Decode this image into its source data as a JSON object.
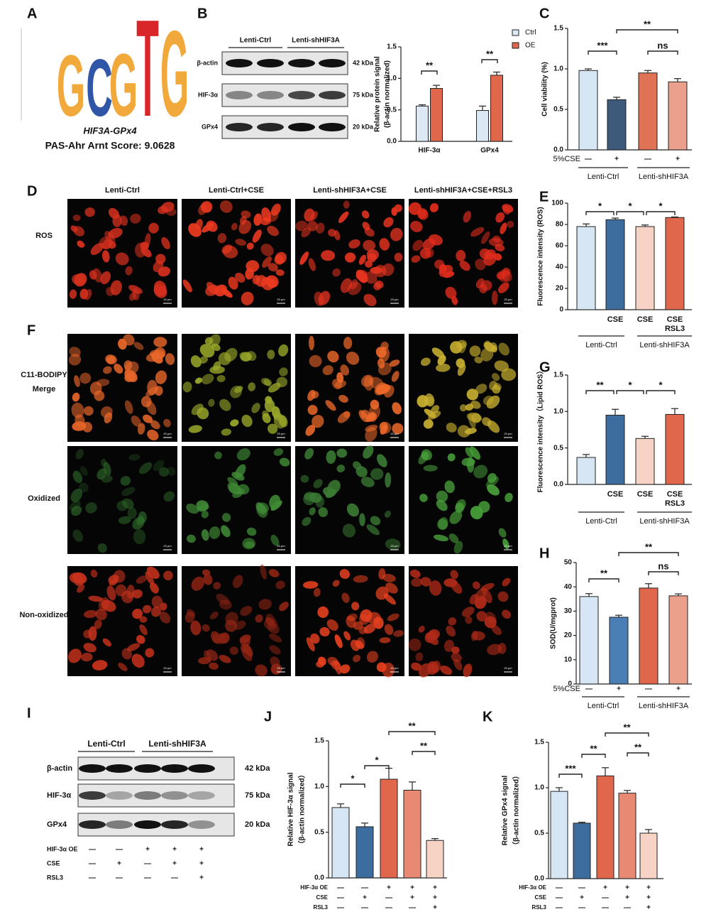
{
  "panel_labels": [
    "A",
    "B",
    "C",
    "D",
    "E",
    "F",
    "G",
    "H",
    "I",
    "J",
    "K"
  ],
  "motif": {
    "logo": [
      "G",
      "C",
      "G",
      "T",
      "G"
    ],
    "name": "HIF3A-GPx4",
    "score": "PAS-Ahr Arnt Score: 9.0628"
  },
  "blots": [
    {
      "groups": [
        "Lenti-Ctrl",
        "Lenti-shHIF3A"
      ],
      "rows": [
        {
          "protein": "β-actin",
          "size": "42 kDa"
        },
        {
          "protein": "HIF-3α",
          "size": "75 kDa"
        },
        {
          "protein": "GPx4",
          "size": "20 kDa"
        }
      ]
    },
    {
      "groups": [
        "Lenti-Ctrl",
        "Lenti-shHIF3A"
      ],
      "rows": [
        {
          "protein": "β-actin",
          "size": "42 kDa"
        },
        {
          "protein": "HIF-3α",
          "size": "75 kDa"
        },
        {
          "protein": "GPx4",
          "size": "20 kDa"
        }
      ],
      "conditions": [
        {
          "name": "HIF-3α OE",
          "values": [
            "—",
            "—",
            "+",
            "+",
            "+"
          ]
        },
        {
          "name": "CSE",
          "values": [
            "—",
            "+",
            "—",
            "+",
            "+"
          ]
        },
        {
          "name": "RSL3",
          "values": [
            "—",
            "—",
            "—",
            "—",
            "+"
          ]
        }
      ]
    }
  ],
  "microscopy": {
    "columns": [
      "Lenti-Ctrl",
      "Lenti-Ctrl+CSE",
      "Lenti-shHIF3A+CSE",
      "Lenti-shHIF3A+CSE+RSL3"
    ],
    "rows": [
      [
        "ROS"
      ],
      [
        "C11-BODIPY",
        "Merge"
      ],
      [
        "Oxidized"
      ],
      [
        "Non-oxidized"
      ]
    ],
    "scale_bar": "20 μm"
  },
  "chart_data": [
    {
      "type": "bar",
      "ylabel": [
        "Relative protein signal",
        "(β-actin normalized)"
      ],
      "categories": [
        "HIF-3α",
        "GPx4"
      ],
      "series": [
        {
          "name": "Ctrl",
          "color": "#dce9f5",
          "values": [
            0.56,
            0.49
          ],
          "errors": [
            0.02,
            0.07
          ]
        },
        {
          "name": "OE",
          "color": "#e0674b",
          "values": [
            0.84,
            1.05
          ],
          "errors": [
            0.05,
            0.05
          ]
        }
      ],
      "ylim": [
        0,
        1.5
      ],
      "yticks": [
        {
          "value": 0,
          "label": "0.0"
        },
        {
          "value": 0.5,
          "label": "0.5"
        },
        {
          "value": 1,
          "label": "1.0"
        },
        {
          "value": 1.5,
          "label": "1.5"
        }
      ],
      "annotations": [
        "**",
        "**"
      ],
      "legend": "upper right"
    },
    {
      "type": "bar",
      "ylabel": [
        "Cell viability (%)"
      ],
      "values": [
        0.98,
        0.62,
        0.95,
        0.84
      ],
      "errors": [
        0.02,
        0.03,
        0.03,
        0.04
      ],
      "colors": [
        "#d6e6f4",
        "#3d5a7a",
        "#e07255",
        "#eaa08d"
      ],
      "ylim": [
        0,
        1.5
      ],
      "yticks": [
        {
          "value": 0,
          "label": "0.0"
        },
        {
          "value": 0.5,
          "label": "0.5"
        },
        {
          "value": 1,
          "label": "1.0"
        },
        {
          "value": 1.5,
          "label": "1.5"
        }
      ],
      "annotations": [
        "***",
        "ns",
        "**"
      ],
      "conditions": [
        {
          "name": "5%CSE",
          "values": [
            "—",
            "+",
            "—",
            "+"
          ]
        }
      ],
      "groups": [
        "Lenti-Ctrl",
        "Lenti-shHIF3A"
      ]
    },
    {
      "type": "bar",
      "ylabel": [
        "Fluorescence intensity (ROS)"
      ],
      "categories": [
        null,
        [
          "CSE"
        ],
        [
          "CSE"
        ],
        [
          "CSE",
          "RSL3"
        ]
      ],
      "values": [
        78,
        84.5,
        78,
        86.5
      ],
      "errors": [
        2.5,
        1.5,
        1.5,
        0.5
      ],
      "colors": [
        "#d6e6f4",
        "#3d6d9e",
        "#f6d3c4",
        "#e0674b"
      ],
      "ylim": [
        0,
        100
      ],
      "yticks": [
        0,
        20,
        40,
        60,
        80,
        100
      ],
      "annotations": [
        "*",
        "*",
        "*"
      ],
      "groups": [
        "Lenti-Ctrl",
        "Lenti-shHIF3A"
      ]
    },
    {
      "type": "bar",
      "ylabel": [
        "Fluorescence intensity（Lipid ROS）"
      ],
      "categories": [
        null,
        [
          "CSE"
        ],
        [
          "CSE"
        ],
        [
          "CSE",
          "RSL3"
        ]
      ],
      "values": [
        0.37,
        0.95,
        0.63,
        0.96
      ],
      "errors": [
        0.04,
        0.08,
        0.03,
        0.08
      ],
      "colors": [
        "#d6e6f4",
        "#3d6d9e",
        "#f6d3c4",
        "#e0674b"
      ],
      "ylim": [
        0,
        1.5
      ],
      "yticks": [
        {
          "value": 0,
          "label": "0.0"
        },
        {
          "value": 0.5,
          "label": "0.5"
        },
        {
          "value": 1,
          "label": "1.0"
        },
        {
          "value": 1.5,
          "label": "1.5"
        }
      ],
      "annotations": [
        "**",
        "*",
        "*"
      ],
      "groups": [
        "Lenti-Ctrl",
        "Lenti-shHIF3A"
      ]
    },
    {
      "type": "bar",
      "ylabel": [
        "SOD(U/mgprot)"
      ],
      "values": [
        36,
        27.5,
        39.5,
        36.3
      ],
      "errors": [
        1.2,
        0.8,
        1.8,
        0.8
      ],
      "colors": [
        "#d6e6f4",
        "#4a7fb5",
        "#e0674b",
        "#eba08b"
      ],
      "ylim": [
        0,
        50
      ],
      "yticks": [
        0,
        10,
        20,
        30,
        40,
        50
      ],
      "annotations": [
        "**",
        "ns",
        "**"
      ],
      "conditions": [
        {
          "name": "5%CSE",
          "values": [
            "—",
            "+",
            "—",
            "+"
          ]
        }
      ],
      "groups": [
        "Lenti-Ctrl",
        "Lenti-shHIF3A"
      ]
    },
    {
      "type": "bar",
      "ylabel": [
        "Relative HIF-3α signal",
        "（β-actin normalized）"
      ],
      "values": [
        0.77,
        0.56,
        1.08,
        0.96,
        0.41
      ],
      "errors": [
        0.04,
        0.04,
        0.12,
        0.09,
        0.02
      ],
      "colors": [
        "#d6e6f4",
        "#3d6d9e",
        "#e0674b",
        "#e88a73",
        "#f6d3c4"
      ],
      "ylim": [
        0,
        1.5
      ],
      "yticks": [
        {
          "value": 0,
          "label": "0.0"
        },
        {
          "value": 0.5,
          "label": "0.5"
        },
        {
          "value": 1,
          "label": "1.0"
        },
        {
          "value": 1.5,
          "label": "1.5"
        }
      ],
      "annotations": [
        "*",
        "*",
        "**",
        "**"
      ],
      "conditions": [
        {
          "name": "HIF-3α OE",
          "values": [
            "—",
            "—",
            "+",
            "+",
            "+"
          ]
        },
        {
          "name": "CSE",
          "values": [
            "—",
            "+",
            "—",
            "+",
            "+"
          ]
        },
        {
          "name": "RSL3",
          "values": [
            "—",
            "—",
            "—",
            "—",
            "+"
          ]
        }
      ]
    },
    {
      "type": "bar",
      "ylabel": [
        "Relative GPx4 signal",
        "（β-actin normalized）"
      ],
      "values": [
        0.96,
        0.61,
        1.13,
        0.94,
        0.5
      ],
      "errors": [
        0.04,
        0.01,
        0.09,
        0.03,
        0.04
      ],
      "colors": [
        "#d6e6f4",
        "#3d6d9e",
        "#e0674b",
        "#e88a73",
        "#f6d3c4"
      ],
      "ylim": [
        0,
        1.5
      ],
      "yticks": [
        {
          "value": 0,
          "label": "0.0"
        },
        {
          "value": 0.5,
          "label": "0.5"
        },
        {
          "value": 1,
          "label": "1.0"
        },
        {
          "value": 1.5,
          "label": "1.5"
        }
      ],
      "annotations": [
        "***",
        "**",
        "**",
        "**"
      ],
      "conditions": [
        {
          "name": "HIF-3α OE",
          "values": [
            "—",
            "—",
            "+",
            "+",
            "+"
          ]
        },
        {
          "name": "CSE",
          "values": [
            "—",
            "+",
            "—",
            "+",
            "+"
          ]
        },
        {
          "name": "RSL3",
          "values": [
            "—",
            "—",
            "—",
            "—",
            "+"
          ]
        }
      ]
    }
  ]
}
